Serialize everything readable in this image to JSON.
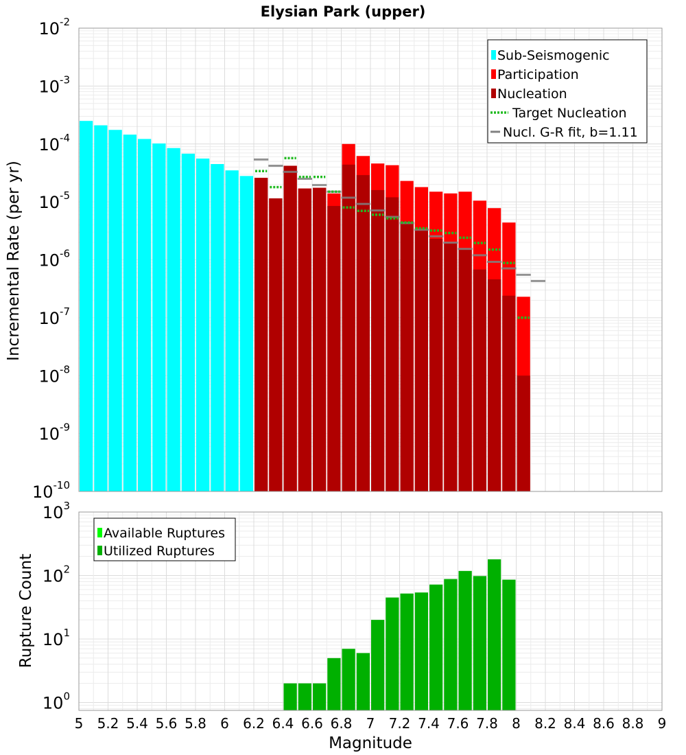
{
  "chart_data": [
    {
      "type": "bar",
      "title": "Elysian Park (upper)",
      "xlabel": "",
      "ylabel": "Incremental Rate (per yr)",
      "yscale": "log",
      "ylim": [
        1e-10,
        0.01
      ],
      "xlim": [
        5,
        9
      ],
      "grid": true,
      "legend_position": "top-right",
      "y_tick_labels": [
        {
          "base": "10",
          "exp": "-10"
        },
        {
          "base": "10",
          "exp": "-9"
        },
        {
          "base": "10",
          "exp": "-8"
        },
        {
          "base": "10",
          "exp": "-7"
        },
        {
          "base": "10",
          "exp": "-6"
        },
        {
          "base": "10",
          "exp": "-5"
        },
        {
          "base": "10",
          "exp": "-4"
        },
        {
          "base": "10",
          "exp": "-3"
        },
        {
          "base": "10",
          "exp": "-2"
        }
      ],
      "legend": [
        {
          "label": "Sub-Seismogenic",
          "kind": "bar",
          "color": "#00ffff"
        },
        {
          "label": "Participation",
          "kind": "bar",
          "color": "#ff0000"
        },
        {
          "label": "Nucleation",
          "kind": "bar",
          "color": "#b00000"
        },
        {
          "label": "Target Nucleation",
          "kind": "dotted",
          "color": "#22bb22"
        },
        {
          "label": "Nucl. G-R fit, b=1.11",
          "kind": "line",
          "color": "#808080"
        }
      ],
      "series": [
        {
          "name": "Sub-Seismogenic",
          "color": "#00ffff",
          "x": [
            5.0,
            5.1,
            5.2,
            5.3,
            5.4,
            5.5,
            5.6,
            5.7,
            5.8,
            5.9,
            6.0,
            6.1
          ],
          "values": [
            0.00025,
            0.00021,
            0.000175,
            0.000145,
            0.000122,
            0.000102,
            8.5e-05,
            6.8e-05,
            5.6e-05,
            4.5e-05,
            3.5e-05,
            2.8e-05
          ]
        },
        {
          "name": "Participation",
          "color": "#ff0000",
          "x": [
            6.2,
            6.3,
            6.4,
            6.5,
            6.6,
            6.7,
            6.8,
            6.9,
            7.0,
            7.1,
            7.2,
            7.3,
            7.4,
            7.5,
            7.6,
            7.7,
            7.8,
            7.9,
            8.0
          ],
          "values": [
            2.6e-05,
            1.15e-05,
            4.2e-05,
            1.7e-05,
            1.75e-05,
            1.4e-05,
            0.0001,
            6.2e-05,
            4.6e-05,
            4.3e-05,
            2.3e-05,
            1.8e-05,
            1.5e-05,
            1.4e-05,
            1.5e-05,
            1.05e-05,
            7.8e-06,
            4.4e-06,
            2.3e-07
          ]
        },
        {
          "name": "Nucleation",
          "color": "#b00000",
          "x": [
            6.2,
            6.3,
            6.4,
            6.5,
            6.6,
            6.7,
            6.8,
            6.9,
            7.0,
            7.1,
            7.2,
            7.3,
            7.4,
            7.5,
            7.6,
            7.7,
            7.8,
            7.9,
            8.0
          ],
          "values": [
            2.6e-05,
            1.15e-05,
            4.2e-05,
            1.7e-05,
            1.75e-05,
            8.5e-06,
            4.4e-05,
            2.9e-05,
            1.6e-05,
            1.2e-05,
            4.6e-06,
            3.3e-06,
            2.3e-06,
            1.95e-06,
            1.55e-06,
            6.8e-07,
            4.6e-07,
            2.4e-07,
            1e-08
          ]
        },
        {
          "name": "Target Nucleation",
          "color": "#22bb22",
          "x": [
            6.2,
            6.3,
            6.4,
            6.5,
            6.6,
            6.7,
            6.8,
            6.9,
            7.0,
            7.1,
            7.2,
            7.3,
            7.4,
            7.5,
            7.6,
            7.7,
            7.8,
            7.9,
            8.0
          ],
          "values": [
            3.4e-05,
            1.8e-05,
            5.7e-05,
            2.7e-05,
            2.7e-05,
            1.5e-05,
            8e-06,
            7e-06,
            6e-06,
            5.2e-06,
            4.4e-06,
            3.5e-06,
            3.2e-06,
            2.9e-06,
            2.4e-06,
            1.95e-06,
            1.5e-06,
            8.8e-07,
            1e-07
          ]
        },
        {
          "name": "Nucl. G-R fit, b=1.11",
          "color": "#808080",
          "x": [
            6.2,
            6.3,
            6.4,
            6.5,
            6.6,
            6.7,
            6.8,
            6.9,
            7.0,
            7.1,
            7.2,
            7.3,
            7.4,
            7.5,
            7.6,
            7.7,
            7.8,
            7.9,
            8.0,
            8.1
          ],
          "values": [
            5.4e-05,
            4.2e-05,
            3.3e-05,
            2.5e-05,
            1.95e-05,
            1.5e-05,
            1.18e-05,
            9.2e-06,
            7.1e-06,
            5.5e-06,
            4.3e-06,
            3.3e-06,
            2.55e-06,
            1.98e-06,
            1.54e-06,
            1.2e-06,
            9.2e-07,
            7.1e-07,
            5.5e-07,
            4.3e-07
          ]
        }
      ]
    },
    {
      "type": "bar",
      "title": "",
      "xlabel": "Magnitude",
      "ylabel": "Rupture Count",
      "yscale": "log",
      "ylim": [
        0.75,
        1000
      ],
      "xlim": [
        5,
        9
      ],
      "grid": true,
      "legend_position": "top-left",
      "x_tick_labels": [
        "5",
        "5.2",
        "5.4",
        "5.6",
        "5.8",
        "6",
        "6.2",
        "6.4",
        "6.6",
        "6.8",
        "7",
        "7.2",
        "7.4",
        "7.6",
        "7.8",
        "8",
        "8.2",
        "8.4",
        "8.6",
        "8.8",
        "9"
      ],
      "y_tick_labels": [
        {
          "base": "10",
          "exp": "0"
        },
        {
          "base": "10",
          "exp": "1"
        },
        {
          "base": "10",
          "exp": "2"
        },
        {
          "base": "10",
          "exp": "3"
        }
      ],
      "legend": [
        {
          "label": "Available Ruptures",
          "kind": "bar",
          "color": "#00ff00"
        },
        {
          "label": "Utilized Ruptures",
          "kind": "bar",
          "color": "#00b000"
        }
      ],
      "series": [
        {
          "name": "Utilized Ruptures",
          "color": "#00b000",
          "x": [
            6.5,
            6.6,
            6.7,
            6.8,
            6.9,
            7.0,
            7.1,
            7.2,
            7.3,
            7.4,
            7.5,
            7.6,
            7.7,
            7.8,
            7.9,
            8.0,
            8.1
          ],
          "values": [
            2,
            2,
            2,
            5,
            7,
            6,
            20,
            45,
            52,
            54,
            72,
            88,
            118,
            98,
            180,
            86,
            0
          ]
        }
      ]
    }
  ]
}
